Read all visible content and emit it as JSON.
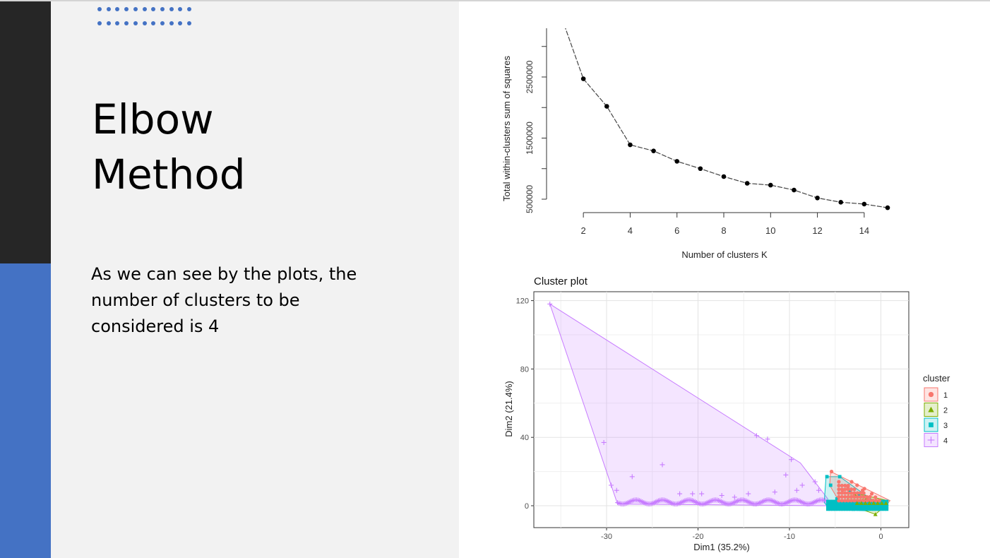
{
  "slide": {
    "title_line1": "Elbow",
    "title_line2": "Method",
    "body": "As we can see by the plots, the number of clusters to be considered is 4",
    "colors": {
      "dark_bar": "#262626",
      "accent": "#4472c4",
      "panel": "#f2f2f2"
    }
  },
  "chart_data": [
    {
      "type": "line",
      "title": "",
      "xlabel": "Number of clusters K",
      "ylabel": "Total within-clusters sum of squares",
      "x": [
        1,
        2,
        3,
        4,
        5,
        6,
        7,
        8,
        9,
        10,
        11,
        12,
        13,
        14,
        15
      ],
      "values": [
        3550000,
        2470000,
        2020000,
        1390000,
        1290000,
        1120000,
        1000000,
        870000,
        760000,
        730000,
        650000,
        520000,
        450000,
        420000,
        360000
      ],
      "x_ticks": [
        "2",
        "4",
        "6",
        "8",
        "10",
        "12",
        "14"
      ],
      "y_ticks": [
        "500000",
        "1500000",
        "2500000"
      ],
      "xlim": [
        1,
        15
      ],
      "ylim": [
        500000,
        3500000
      ],
      "grid": false
    },
    {
      "type": "scatter",
      "title": "Cluster plot",
      "xlabel": "Dim1 (35.2%)",
      "ylabel": "Dim2 (21.4%)",
      "x_ticks": [
        "-30",
        "-20",
        "-10",
        "0"
      ],
      "y_ticks": [
        "0",
        "40",
        "80",
        "120"
      ],
      "xlim": [
        -37,
        3
      ],
      "ylim": [
        -12,
        125
      ],
      "grid": true,
      "legend": {
        "title": "cluster",
        "position": "right",
        "items": [
          "1",
          "2",
          "3",
          "4"
        ]
      },
      "series": [
        {
          "name": "1",
          "color": "#f8766d",
          "marker": "circle",
          "hull": [
            [
              -5.5,
              20
            ],
            [
              1.0,
              3
            ],
            [
              0.5,
              0
            ],
            [
              -4.5,
              2
            ],
            [
              -5.6,
              12
            ]
          ],
          "points": [
            [
              -5.4,
              20
            ],
            [
              -3.2,
              14
            ],
            [
              -2.6,
              12
            ],
            [
              -1.8,
              10
            ],
            [
              -0.6,
              5
            ],
            [
              0.5,
              2
            ],
            [
              -1.0,
              7
            ],
            [
              -2.0,
              9
            ],
            [
              -3.6,
              11
            ],
            [
              -4.2,
              9
            ],
            [
              -1.5,
              4
            ],
            [
              -0.2,
              3
            ],
            [
              -2.9,
              6
            ],
            [
              -4.6,
              5
            ]
          ]
        },
        {
          "name": "2",
          "color": "#7cae00",
          "marker": "triangle",
          "hull": [
            [
              -3.5,
              8
            ],
            [
              0.8,
              3
            ],
            [
              0.5,
              0
            ],
            [
              -0.6,
              -5
            ],
            [
              -3.8,
              1
            ]
          ],
          "points": [
            [
              -0.6,
              -5
            ],
            [
              -1.2,
              2
            ],
            [
              -2.0,
              3
            ],
            [
              0.2,
              2
            ],
            [
              -2.8,
              6
            ],
            [
              -1.6,
              4
            ],
            [
              -0.5,
              1
            ]
          ]
        },
        {
          "name": "3",
          "color": "#00bfc4",
          "marker": "square",
          "hull": [
            [
              -6.0,
              17
            ],
            [
              -4.5,
              17
            ],
            [
              0.2,
              -1
            ],
            [
              -1.5,
              -3
            ],
            [
              -5.6,
              -2
            ],
            [
              -6.2,
              2
            ]
          ],
          "points": [
            [
              -5.9,
              17
            ],
            [
              -5.5,
              12
            ],
            [
              -4.5,
              17
            ],
            [
              -3.4,
              9
            ],
            [
              -2.4,
              6
            ],
            [
              -4.8,
              4
            ],
            [
              -3.8,
              2
            ],
            [
              -2.2,
              -1
            ],
            [
              -1.0,
              -1
            ],
            [
              -5.0,
              0
            ],
            [
              -3.0,
              -2
            ],
            [
              -1.6,
              1
            ],
            [
              -0.2,
              -1
            ]
          ]
        },
        {
          "name": "4",
          "color": "#c77cff",
          "marker": "cross",
          "hull": [
            [
              -36.2,
              118
            ],
            [
              -8.8,
              25
            ],
            [
              -5.8,
              4
            ],
            [
              -6.0,
              0
            ],
            [
              -28.8,
              1
            ],
            [
              -29.5,
              12
            ]
          ],
          "points": [
            [
              -36.2,
              118
            ],
            [
              -30.3,
              37
            ],
            [
              -29.5,
              12
            ],
            [
              -28.9,
              9
            ],
            [
              -27.2,
              17
            ],
            [
              -23.9,
              24
            ],
            [
              -13.6,
              41
            ],
            [
              -12.4,
              39
            ],
            [
              -9.8,
              27
            ],
            [
              -10.4,
              18
            ],
            [
              -8.6,
              12
            ],
            [
              -7.2,
              14
            ],
            [
              -6.8,
              9
            ],
            [
              -20.6,
              7
            ],
            [
              -19.6,
              7
            ],
            [
              -17.4,
              6
            ],
            [
              -14.5,
              7
            ],
            [
              -11.6,
              8
            ],
            [
              -9.2,
              9
            ],
            [
              -22.0,
              7
            ],
            [
              -16.0,
              5
            ]
          ]
        }
      ]
    }
  ]
}
